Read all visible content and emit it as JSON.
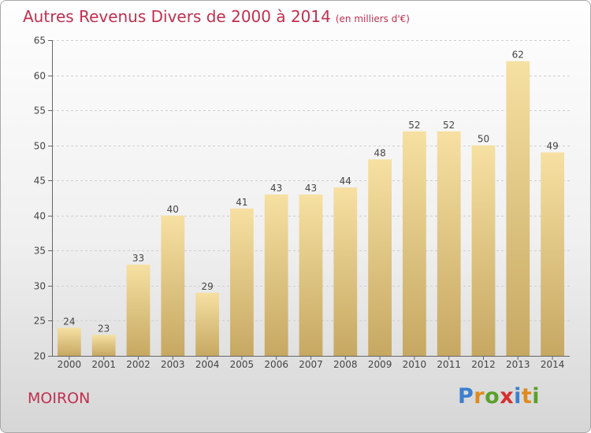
{
  "header": {
    "title": "Autres Revenus Divers de 2000 à 2014",
    "unit": "(en milliers d'€)"
  },
  "footer": {
    "town": "MOIRON"
  },
  "logo": {
    "text": "Proxiti",
    "letter_colors": [
      "#3a7fcf",
      "#e08a1e",
      "#5aa02c",
      "#d6302e",
      "#3a7fcf",
      "#e08a1e",
      "#5aa02c"
    ]
  },
  "colors": {
    "accent": "#c0304f",
    "bar_top": "#f6e0a2",
    "bar_bottom": "#c6a862",
    "grid": "#cfcfcf"
  },
  "chart_data": {
    "type": "bar",
    "title": "Autres Revenus Divers de 2000 à 2014",
    "subtitle": "(en milliers d'€)",
    "xlabel": "",
    "ylabel": "",
    "categories": [
      "2000",
      "2001",
      "2002",
      "2003",
      "2004",
      "2005",
      "2006",
      "2007",
      "2008",
      "2009",
      "2010",
      "2011",
      "2012",
      "2013",
      "2014"
    ],
    "values": [
      24,
      23,
      33,
      40,
      29,
      41,
      43,
      43,
      44,
      48,
      52,
      52,
      50,
      62,
      49
    ],
    "ylim": [
      20,
      65
    ],
    "yticks": [
      20,
      25,
      30,
      35,
      40,
      45,
      50,
      55,
      60,
      65
    ],
    "grid": true,
    "data_labels": true
  }
}
